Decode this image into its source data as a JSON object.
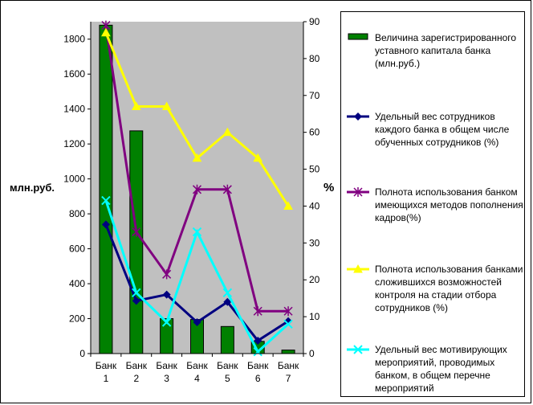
{
  "chart_data": {
    "type": "bar+line",
    "categories": [
      "Банк 1",
      "Банк 2",
      "Банк 3",
      "Банк 4",
      "Банк 5",
      "Банк 6",
      "Банк 7"
    ],
    "category_lines": [
      [
        "Банк",
        "1"
      ],
      [
        "Банк",
        "2"
      ],
      [
        "Банк",
        "3"
      ],
      [
        "Банк",
        "4"
      ],
      [
        "Банк",
        "5"
      ],
      [
        "Банк",
        "6"
      ],
      [
        "Банк",
        "7"
      ]
    ],
    "y_left": {
      "label": "млн.руб.",
      "range": [
        0,
        1900
      ],
      "ticks": [
        0,
        200,
        400,
        600,
        800,
        1000,
        1200,
        1400,
        1600,
        1800
      ]
    },
    "y_right": {
      "label": "%",
      "range": [
        0,
        90
      ],
      "ticks": [
        0,
        10,
        20,
        30,
        40,
        50,
        60,
        70,
        80,
        90
      ]
    },
    "series": [
      {
        "name": "Величина зарегистрированного уставного капитала банка (млн.руб.)",
        "kind": "bar",
        "axis": "left",
        "color": "#008000",
        "values": [
          1880,
          1275,
          200,
          195,
          155,
          70,
          20
        ]
      },
      {
        "name": "Удельный вес сотрудников каждого банка в общем числе обученных сотрудников (%)",
        "kind": "line",
        "axis": "right",
        "color": "#000080",
        "marker": "diamond",
        "values": [
          35,
          14.3,
          16,
          8.5,
          14,
          3.5,
          8.8
        ]
      },
      {
        "name": "Полнота использования банком имеющихся методов пополнения кадров(%)",
        "kind": "line",
        "axis": "right",
        "color": "#800080",
        "marker": "asterisk",
        "values": [
          89,
          33,
          21.5,
          44.5,
          44.5,
          11.5,
          11.5
        ]
      },
      {
        "name": "Полнота использования банками сложившихся возможностей контроля на стадии отбора сотрудников (%)",
        "kind": "line",
        "axis": "right",
        "color": "#FFFF00",
        "marker": "triangle",
        "values": [
          87,
          67,
          67,
          53,
          60,
          53,
          40
        ]
      },
      {
        "name": "Удельный вес мотивирующих мероприятий, проводимых банком, в общем перечне мероприятий",
        "kind": "line",
        "axis": "right",
        "color": "#00FFFF",
        "marker": "x",
        "values": [
          41.5,
          16.5,
          8.5,
          33,
          16.5,
          0.5,
          8
        ]
      }
    ],
    "grid": false,
    "plot_background": "#C0C0C0",
    "legend_position": "right"
  }
}
